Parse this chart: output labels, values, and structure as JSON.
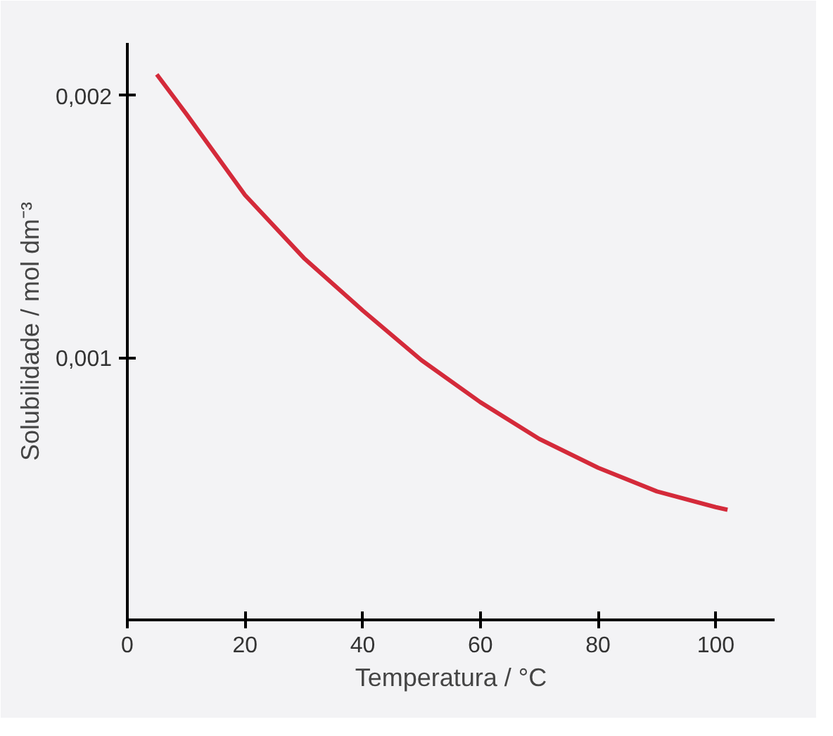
{
  "chart_data": {
    "type": "line",
    "xlabel": "Temperatura / °C",
    "ylabel": "Solubilidade / mol dm⁻³",
    "x": [
      5,
      10,
      20,
      30,
      40,
      50,
      60,
      70,
      80,
      90,
      100,
      102
    ],
    "series": [
      {
        "color": "#d42a3a",
        "values": [
          0.00208,
          0.00193,
          0.00162,
          0.00138,
          0.00118,
          0.00099,
          0.00083,
          0.00069,
          0.00058,
          0.00049,
          0.00043,
          0.00042
        ]
      }
    ],
    "xlim": [
      0,
      110
    ],
    "ylim": [
      0,
      0.0022
    ],
    "xticks": [
      0,
      20,
      40,
      60,
      80,
      100
    ],
    "yticks": [
      {
        "value": 0.001,
        "label": "0,001"
      },
      {
        "value": 0.002,
        "label": "0,002"
      }
    ],
    "grid": false,
    "marker": "none",
    "line_style": "solid"
  }
}
